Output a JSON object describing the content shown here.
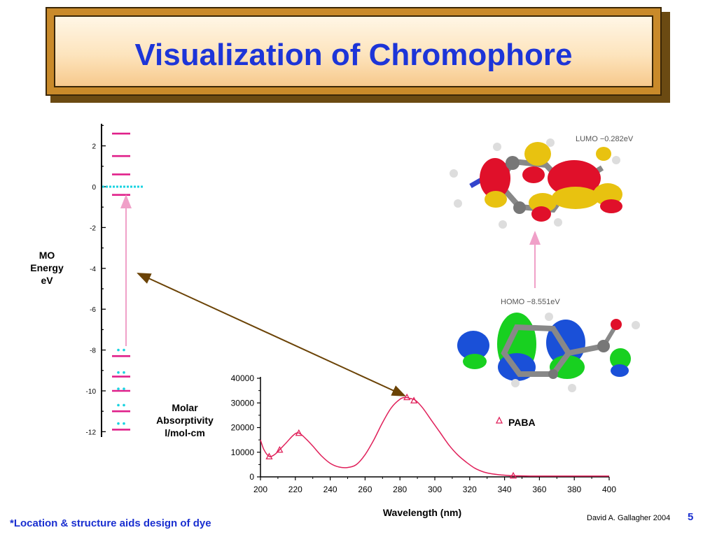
{
  "slide": {
    "title": "Visualization of Chromophore",
    "footnote": "*Location & structure aids design of dye",
    "credit": "David A. Gallagher 2004",
    "page_number": "5"
  },
  "colors": {
    "title": "#1d35d8",
    "level": "#e0208a",
    "electrons": "#19d3e0",
    "transition": "#f0a0c8",
    "curve": "#e0205a",
    "link_arrow": "#6b4306",
    "orbital_red": "#e0102a",
    "orbital_yellow": "#e8c210",
    "orbital_blue": "#1a50d8",
    "orbital_green": "#18d020"
  },
  "chart_data": [
    {
      "type": "scatter",
      "title": "",
      "ylabel_lines": [
        "MO",
        "Energy",
        "eV"
      ],
      "ylim": [
        -12,
        3
      ],
      "yticks": [
        2,
        0,
        -2,
        -4,
        -6,
        -8,
        -10,
        -12
      ],
      "levels_ev": [
        2.6,
        1.5,
        0.6,
        -0.4,
        -8.3,
        -9.3,
        -10.0,
        -11.0,
        -11.9
      ],
      "lumo_ev": -0.282,
      "homo_ev": -8.551,
      "occupied_ev": [
        -8.0,
        -9.1,
        -9.9,
        -10.7,
        -11.6
      ]
    },
    {
      "type": "line",
      "xlabel": "Wavelength  (nm)",
      "ylabel_lines": [
        "Molar",
        "Absorptivity",
        "l/mol-cm"
      ],
      "xlim": [
        200,
        400
      ],
      "ylim": [
        0,
        40000
      ],
      "xticks": [
        200,
        220,
        240,
        260,
        280,
        300,
        320,
        340,
        360,
        380,
        400
      ],
      "yticks": [
        0,
        10000,
        20000,
        30000,
        40000
      ],
      "series": [
        {
          "name": "PABA",
          "x": [
            200,
            202,
            205,
            208,
            211,
            215,
            219,
            222,
            226,
            230,
            235,
            240,
            245,
            250,
            255,
            260,
            265,
            270,
            275,
            280,
            283,
            286,
            289,
            293,
            298,
            303,
            308,
            313,
            318,
            323,
            328,
            333,
            338,
            343,
            350,
            360,
            380,
            400
          ],
          "y": [
            15000,
            11000,
            8300,
            9000,
            11000,
            14000,
            17000,
            17800,
            15500,
            12500,
            8500,
            5500,
            4000,
            3800,
            5000,
            9000,
            15000,
            22000,
            28000,
            31500,
            32200,
            31800,
            31000,
            28000,
            23000,
            18000,
            13000,
            9000,
            6000,
            3500,
            2000,
            1200,
            800,
            500,
            400,
            300,
            300,
            300
          ],
          "markers_x": [
            205,
            211,
            222,
            284,
            288,
            345
          ],
          "markers_y": [
            8300,
            11000,
            17800,
            32300,
            31000,
            500
          ]
        }
      ]
    }
  ],
  "orbitals": {
    "lumo_label": "LUMO  −0.282eV",
    "homo_label": "HOMO  −8.551eV"
  }
}
